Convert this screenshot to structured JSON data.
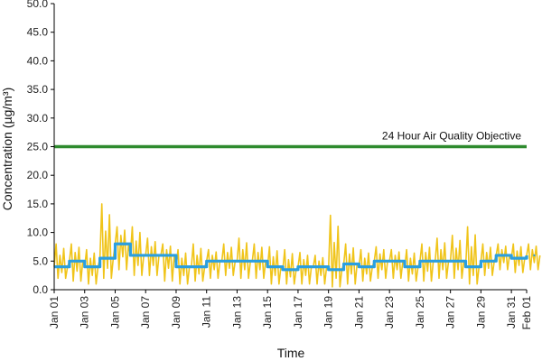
{
  "chart_data": {
    "type": "line",
    "title": "",
    "xlabel": "Time",
    "ylabel": "Concentration (µg/m³)",
    "ylim": [
      0,
      50
    ],
    "yticks": [
      "0.0",
      "5.0",
      "10.0",
      "15.0",
      "20.0",
      "25.0",
      "30.0",
      "35.0",
      "40.0",
      "45.0",
      "50.0"
    ],
    "xlim": [
      "Jan 01",
      "Feb 01"
    ],
    "xticks": [
      "Jan 01",
      "Jan 03",
      "Jan 05",
      "Jan 07",
      "Jan 09",
      "Jan 11",
      "Jan 13",
      "Jan 15",
      "Jan 17",
      "Jan 19",
      "Jan 21",
      "Jan 23",
      "Jan 25",
      "Jan 27",
      "Jan 29",
      "Jan 31",
      "Feb 01"
    ],
    "grid": false,
    "legend": "none",
    "colors": {
      "hourly": "#f0c419",
      "daily": "#2a9fe0",
      "objective": "#2e8b2e"
    },
    "annotations": [
      {
        "text": "24 Hour Air Quality Objective",
        "y": 25
      }
    ],
    "objective_line": {
      "y": 25,
      "x": [
        "Jan 01",
        "Feb 01"
      ]
    },
    "series": [
      {
        "key": "daily",
        "x": [
          "Jan 01",
          "Jan 02",
          "Jan 03",
          "Jan 04",
          "Jan 05",
          "Jan 06",
          "Jan 07",
          "Jan 08",
          "Jan 09",
          "Jan 10",
          "Jan 11",
          "Jan 12",
          "Jan 13",
          "Jan 14",
          "Jan 15",
          "Jan 16",
          "Jan 17",
          "Jan 18",
          "Jan 19",
          "Jan 20",
          "Jan 21",
          "Jan 22",
          "Jan 23",
          "Jan 24",
          "Jan 25",
          "Jan 26",
          "Jan 27",
          "Jan 28",
          "Jan 29",
          "Jan 30",
          "Jan 31",
          "Feb 01"
        ],
        "values": [
          4.0,
          5.0,
          4.0,
          5.5,
          8.0,
          6.0,
          6.0,
          6.0,
          4.0,
          4.0,
          5.0,
          5.0,
          5.0,
          5.0,
          4.0,
          3.5,
          4.0,
          4.0,
          3.5,
          4.5,
          4.0,
          5.0,
          5.0,
          4.0,
          5.0,
          5.0,
          5.0,
          4.0,
          5.0,
          6.0,
          5.5,
          6.0
        ]
      },
      {
        "key": "hourly",
        "x": [
          "Jan 01",
          "Jan 02",
          "Jan 03",
          "Jan 04",
          "Jan 05",
          "Jan 06",
          "Jan 07",
          "Jan 08",
          "Jan 09",
          "Jan 10",
          "Jan 11",
          "Jan 12",
          "Jan 13",
          "Jan 14",
          "Jan 15",
          "Jan 16",
          "Jan 17",
          "Jan 18",
          "Jan 19",
          "Jan 20",
          "Jan 21",
          "Jan 22",
          "Jan 23",
          "Jan 24",
          "Jan 25",
          "Jan 26",
          "Jan 27",
          "Jan 28",
          "Jan 29",
          "Jan 30",
          "Jan 31",
          "Feb 01"
        ],
        "values": [
          4.0,
          5.0,
          4.0,
          5.5,
          8.0,
          6.0,
          6.0,
          6.0,
          4.0,
          4.0,
          5.0,
          5.0,
          5.0,
          5.0,
          4.0,
          3.5,
          4.0,
          4.0,
          3.5,
          4.5,
          4.0,
          5.0,
          5.0,
          4.0,
          5.0,
          5.0,
          5.0,
          4.0,
          5.0,
          6.0,
          5.5,
          6.0
        ],
        "max": [
          8.0,
          8.0,
          7.0,
          15.0,
          11.0,
          11.0,
          9.0,
          8.0,
          7.0,
          8.0,
          7.0,
          8.0,
          9.0,
          8.0,
          7.5,
          7.0,
          6.5,
          6.0,
          13.0,
          8.0,
          7.0,
          7.5,
          7.0,
          7.0,
          8.0,
          9.0,
          9.5,
          11.0,
          8.0,
          8.0,
          8.0,
          8.0
        ],
        "min": [
          2.0,
          1.5,
          1.0,
          2.0,
          3.5,
          2.5,
          2.5,
          1.5,
          1.0,
          1.5,
          2.0,
          2.5,
          2.0,
          2.0,
          1.0,
          1.0,
          1.0,
          1.0,
          0.5,
          1.0,
          1.5,
          2.0,
          2.0,
          1.5,
          1.5,
          2.0,
          2.0,
          1.0,
          2.5,
          3.5,
          3.0,
          3.5
        ]
      }
    ]
  }
}
